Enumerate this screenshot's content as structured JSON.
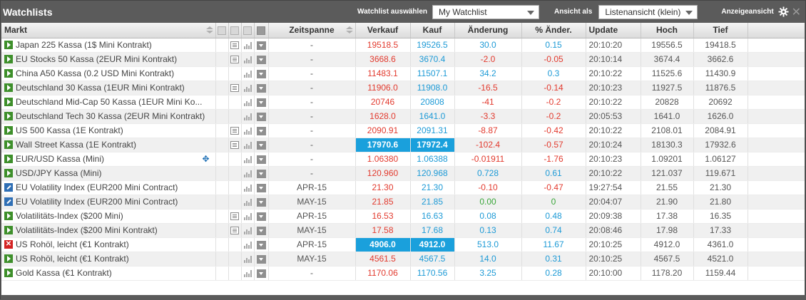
{
  "header": {
    "title": "Watchlists",
    "watchlist_label": "Watchlist auswählen",
    "watchlist_value": "My Watchlist",
    "view_label": "Ansicht als",
    "view_value": "Listenansicht (klein)",
    "display_view_label": "Anzeigeansicht",
    "icons": {
      "settings": "gear-icon",
      "close": "close-icon"
    },
    "close_glyph": "✕"
  },
  "columns": {
    "market": "Markt",
    "period": "Zeitspanne",
    "sell": "Verkauf",
    "buy": "Kauf",
    "change": "Änderung",
    "pct_change": "% Änder.",
    "update": "Update",
    "high": "Hoch",
    "low": "Tief"
  },
  "colors": {
    "accent": "#1aa0dc",
    "negative": "#e23a2e",
    "positive": "#1d9ad6",
    "neutral_green": "#3aa63a",
    "play": "#3e8f2b",
    "alert": "#d42323"
  },
  "rows": [
    {
      "icon": "play",
      "name": "Japan 225 Kassa (1$ Mini Kontrakt)",
      "doc": true,
      "period": "-",
      "sell": "19518.5",
      "buy": "19526.5",
      "change": "30.0",
      "pct": "0.15",
      "update": "20:10:20",
      "high": "19556.5",
      "low": "19418.5",
      "dir": "pos",
      "hl": false
    },
    {
      "icon": "play",
      "name": "EU Stocks 50 Kassa (2EUR Mini Kontrakt)",
      "doc": true,
      "period": "-",
      "sell": "3668.6",
      "buy": "3670.4",
      "change": "-2.0",
      "pct": "-0.05",
      "update": "20:10:14",
      "high": "3674.4",
      "low": "3662.6",
      "dir": "neg",
      "hl": false
    },
    {
      "icon": "play",
      "name": "China A50 Kassa (0.2 USD Mini Kontrakt)",
      "doc": false,
      "period": "-",
      "sell": "11483.1",
      "buy": "11507.1",
      "change": "34.2",
      "pct": "0.3",
      "update": "20:10:22",
      "high": "11525.6",
      "low": "11430.9",
      "dir": "pos",
      "hl": false
    },
    {
      "icon": "play",
      "name": "Deutschland 30 Kassa (1EUR Mini Kontrakt)",
      "doc": true,
      "period": "-",
      "sell": "11906.0",
      "buy": "11908.0",
      "change": "-16.5",
      "pct": "-0.14",
      "update": "20:10:23",
      "high": "11927.5",
      "low": "11876.5",
      "dir": "neg",
      "hl": false
    },
    {
      "icon": "play",
      "name": "Deutschland Mid-Cap 50 Kassa (1EUR Mini Ko...",
      "doc": false,
      "period": "-",
      "sell": "20746",
      "buy": "20808",
      "change": "-41",
      "pct": "-0.2",
      "update": "20:10:22",
      "high": "20828",
      "low": "20692",
      "dir": "neg",
      "hl": false
    },
    {
      "icon": "play",
      "name": "Deutschland Tech 30 Kassa (2EUR Mini Kontrakt)",
      "doc": false,
      "period": "-",
      "sell": "1628.0",
      "buy": "1641.0",
      "change": "-3.3",
      "pct": "-0.2",
      "update": "20:05:53",
      "high": "1641.0",
      "low": "1626.0",
      "dir": "neg",
      "hl": false
    },
    {
      "icon": "play",
      "name": "US 500 Kassa (1E Kontrakt)",
      "doc": true,
      "period": "-",
      "sell": "2090.91",
      "buy": "2091.31",
      "change": "-8.87",
      "pct": "-0.42",
      "update": "20:10:22",
      "high": "2108.01",
      "low": "2084.91",
      "dir": "neg",
      "hl": false
    },
    {
      "icon": "play",
      "name": "Wall Street Kassa (1E Kontrakt)",
      "doc": true,
      "period": "-",
      "sell": "17970.6",
      "buy": "17972.4",
      "change": "-102.4",
      "pct": "-0.57",
      "update": "20:10:24",
      "high": "18130.3",
      "low": "17932.6",
      "dir": "neg",
      "hl": true
    },
    {
      "icon": "play",
      "name": "EUR/USD Kassa (Mini)",
      "doc": false,
      "move": true,
      "period": "-",
      "sell": "1.06380",
      "buy": "1.06388",
      "change": "-0.01911",
      "pct": "-1.76",
      "update": "20:10:23",
      "high": "1.09201",
      "low": "1.06127",
      "dir": "neg",
      "hl": false
    },
    {
      "icon": "play",
      "name": "USD/JPY Kassa (Mini)",
      "doc": false,
      "period": "-",
      "sell": "120.960",
      "buy": "120.968",
      "change": "0.728",
      "pct": "0.61",
      "update": "20:10:22",
      "high": "121.037",
      "low": "119.671",
      "dir": "pos",
      "hl": false
    },
    {
      "icon": "edit",
      "name": "EU Volatility Index (EUR200 Mini Contract)",
      "doc": false,
      "period": "APR-15",
      "sell": "21.30",
      "buy": "21.30",
      "change": "-0.10",
      "pct": "-0.47",
      "update": "19:27:54",
      "high": "21.55",
      "low": "21.30",
      "dir": "neg",
      "hl": false
    },
    {
      "icon": "edit",
      "name": "EU Volatility Index (EUR200 Mini Contract)",
      "doc": false,
      "period": "MAY-15",
      "sell": "21.85",
      "buy": "21.85",
      "change": "0.00",
      "pct": "0",
      "update": "20:04:07",
      "high": "21.90",
      "low": "21.80",
      "dir": "zero",
      "hl": false
    },
    {
      "icon": "play",
      "name": "Volatilitäts-Index ($200 Mini)",
      "doc": true,
      "period": "APR-15",
      "sell": "16.53",
      "buy": "16.63",
      "change": "0.08",
      "pct": "0.48",
      "update": "20:09:38",
      "high": "17.38",
      "low": "16.35",
      "dir": "pos",
      "hl": false
    },
    {
      "icon": "play",
      "name": "Volatilitäts-Index ($200 Mini Kontrakt)",
      "doc": true,
      "period": "MAY-15",
      "sell": "17.58",
      "buy": "17.68",
      "change": "0.13",
      "pct": "0.74",
      "update": "20:08:46",
      "high": "17.98",
      "low": "17.33",
      "dir": "pos",
      "hl": false
    },
    {
      "icon": "x",
      "name": "US Rohöl, leicht (€1 Kontrakt)",
      "doc": false,
      "period": "APR-15",
      "sell": "4906.0",
      "buy": "4912.0",
      "change": "513.0",
      "pct": "11.67",
      "update": "20:10:25",
      "high": "4912.0",
      "low": "4361.0",
      "dir": "pos",
      "hl": true
    },
    {
      "icon": "play",
      "name": "US Rohöl, leicht (€1 Kontrakt)",
      "doc": false,
      "period": "MAY-15",
      "sell": "4561.5",
      "buy": "4567.5",
      "change": "14.0",
      "pct": "0.31",
      "update": "20:10:25",
      "high": "4567.5",
      "low": "4521.0",
      "dir": "pos",
      "hl": false
    },
    {
      "icon": "play",
      "name": "Gold Kassa (€1 Kontrakt)",
      "doc": false,
      "period": "-",
      "sell": "1170.06",
      "buy": "1170.56",
      "change": "3.25",
      "pct": "0.28",
      "update": "20:10:00",
      "high": "1178.20",
      "low": "1159.44",
      "dir": "pos",
      "hl": false
    }
  ]
}
